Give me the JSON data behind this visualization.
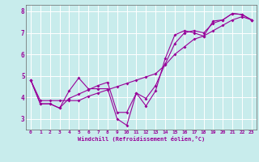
{
  "xlabel": "Windchill (Refroidissement éolien,°C)",
  "background_color": "#c8ecec",
  "line_color": "#990099",
  "grid_color": "#ffffff",
  "xlim": [
    -0.5,
    23.5
  ],
  "ylim": [
    2.5,
    8.3
  ],
  "yticks": [
    3,
    4,
    5,
    6,
    7,
    8
  ],
  "xticks": [
    0,
    1,
    2,
    3,
    4,
    5,
    6,
    7,
    8,
    9,
    10,
    11,
    12,
    13,
    14,
    15,
    16,
    17,
    18,
    19,
    20,
    21,
    22,
    23
  ],
  "series1_x": [
    0,
    1,
    2,
    3,
    4,
    5,
    6,
    7,
    8,
    9,
    10,
    11,
    12,
    13,
    14,
    15,
    16,
    17,
    18,
    19,
    20,
    21,
    22,
    23
  ],
  "series1_y": [
    4.8,
    3.7,
    3.7,
    3.5,
    4.3,
    4.9,
    4.4,
    4.4,
    4.4,
    3.0,
    2.7,
    4.2,
    3.6,
    4.3,
    5.8,
    6.9,
    7.1,
    7.0,
    6.85,
    7.55,
    7.6,
    7.9,
    7.85,
    7.6
  ],
  "series2_x": [
    0,
    1,
    2,
    3,
    4,
    5,
    6,
    7,
    8,
    9,
    10,
    11,
    12,
    13,
    14,
    15,
    16,
    17,
    18,
    19,
    20,
    21,
    22,
    23
  ],
  "series2_y": [
    4.8,
    3.85,
    3.85,
    3.85,
    3.85,
    3.85,
    4.05,
    4.2,
    4.35,
    4.5,
    4.65,
    4.8,
    4.95,
    5.1,
    5.5,
    6.0,
    6.35,
    6.7,
    6.85,
    7.1,
    7.35,
    7.6,
    7.75,
    7.6
  ],
  "series3_x": [
    0,
    1,
    2,
    3,
    4,
    5,
    6,
    7,
    8,
    9,
    10,
    11,
    12,
    13,
    14,
    15,
    16,
    17,
    18,
    19,
    20,
    21,
    22,
    23
  ],
  "series3_y": [
    4.8,
    3.7,
    3.7,
    3.5,
    3.95,
    4.15,
    4.35,
    4.55,
    4.7,
    3.3,
    3.3,
    4.2,
    3.95,
    4.55,
    5.55,
    6.5,
    7.0,
    7.1,
    7.0,
    7.45,
    7.6,
    7.9,
    7.85,
    7.6
  ]
}
